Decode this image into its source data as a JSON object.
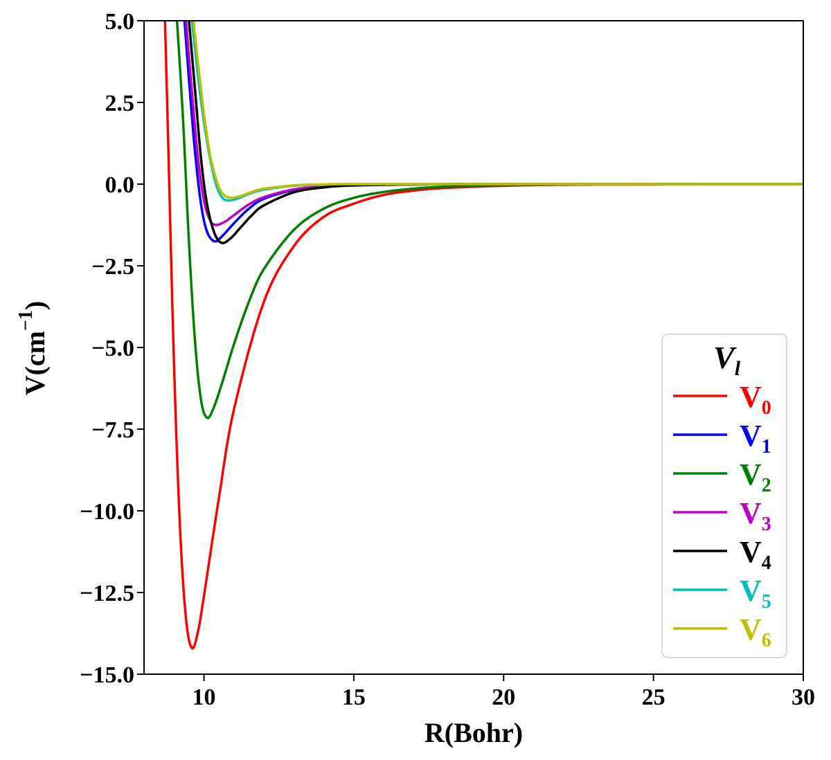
{
  "chart_data": {
    "type": "line",
    "title": "",
    "xlabel": "R(Bohr)",
    "ylabel_main": "V(cm",
    "ylabel_sup": "−1",
    "ylabel_close": ")",
    "xlim": [
      8,
      30
    ],
    "ylim": [
      -15,
      5
    ],
    "xticks": [
      10,
      15,
      20,
      25,
      30
    ],
    "xtick_labels": [
      "10",
      "15",
      "20",
      "25",
      "30"
    ],
    "yticks": [
      5,
      2.5,
      0,
      -2.5,
      -5,
      -7.5,
      -10,
      -12.5,
      -15
    ],
    "ytick_labels": [
      "5.0",
      "2.5",
      "0.0",
      "−2.5",
      "−5.0",
      "−7.5",
      "−10.0",
      "−12.5",
      "−15.0"
    ],
    "legend": {
      "title": "V",
      "title_sub": "l",
      "position": "lower-right"
    },
    "series": [
      {
        "name": "V",
        "sub": "0",
        "color": "#ff0000",
        "min_r": 9.6,
        "min_v": -14.2,
        "decay": 1.6,
        "points": [
          [
            8.7,
            5.0
          ],
          [
            8.8,
            1.5
          ],
          [
            9.0,
            -5.5
          ],
          [
            9.2,
            -10.5
          ],
          [
            9.4,
            -13.3
          ],
          [
            9.6,
            -14.2
          ],
          [
            9.8,
            -13.7
          ],
          [
            10.0,
            -12.6
          ],
          [
            10.5,
            -9.6
          ],
          [
            11,
            -6.9
          ],
          [
            12,
            -3.6
          ],
          [
            13,
            -1.9
          ],
          [
            14,
            -1.0
          ],
          [
            15,
            -0.6
          ],
          [
            16,
            -0.33
          ],
          [
            17,
            -0.2
          ],
          [
            18,
            -0.12
          ],
          [
            20,
            -0.05
          ],
          [
            22,
            -0.02
          ],
          [
            25,
            -0.01
          ],
          [
            30,
            0
          ]
        ]
      },
      {
        "name": "V",
        "sub": "1",
        "color": "#0000ff",
        "min_r": 10.35,
        "min_v": -1.75,
        "points": [
          [
            9.35,
            5.0
          ],
          [
            9.5,
            3.2
          ],
          [
            9.7,
            1.0
          ],
          [
            9.9,
            -0.6
          ],
          [
            10.1,
            -1.45
          ],
          [
            10.35,
            -1.75
          ],
          [
            10.6,
            -1.6
          ],
          [
            11,
            -1.2
          ],
          [
            11.5,
            -0.75
          ],
          [
            12,
            -0.45
          ],
          [
            13,
            -0.18
          ],
          [
            14,
            -0.08
          ],
          [
            15,
            -0.04
          ],
          [
            17,
            -0.01
          ],
          [
            20,
            0
          ],
          [
            30,
            0
          ]
        ]
      },
      {
        "name": "V",
        "sub": "2",
        "color": "#008000",
        "min_r": 10.1,
        "min_v": -7.15,
        "points": [
          [
            9.1,
            5.0
          ],
          [
            9.3,
            2.0
          ],
          [
            9.5,
            -1.8
          ],
          [
            9.7,
            -4.8
          ],
          [
            9.9,
            -6.6
          ],
          [
            10.1,
            -7.15
          ],
          [
            10.3,
            -6.9
          ],
          [
            10.6,
            -6.1
          ],
          [
            11,
            -4.9
          ],
          [
            11.5,
            -3.6
          ],
          [
            12,
            -2.6
          ],
          [
            13,
            -1.4
          ],
          [
            14,
            -0.75
          ],
          [
            15,
            -0.42
          ],
          [
            16,
            -0.24
          ],
          [
            17,
            -0.14
          ],
          [
            18,
            -0.08
          ],
          [
            20,
            -0.03
          ],
          [
            22,
            -0.01
          ],
          [
            25,
            0
          ],
          [
            30,
            0
          ]
        ]
      },
      {
        "name": "V",
        "sub": "3",
        "color": "#bf00bf",
        "min_r": 10.4,
        "min_v": -1.25,
        "points": [
          [
            9.4,
            5.0
          ],
          [
            9.6,
            2.8
          ],
          [
            9.8,
            0.8
          ],
          [
            10.0,
            -0.5
          ],
          [
            10.2,
            -1.1
          ],
          [
            10.4,
            -1.25
          ],
          [
            10.7,
            -1.15
          ],
          [
            11,
            -0.95
          ],
          [
            11.5,
            -0.62
          ],
          [
            12,
            -0.4
          ],
          [
            13,
            -0.16
          ],
          [
            14,
            -0.07
          ],
          [
            15,
            -0.03
          ],
          [
            17,
            -0.01
          ],
          [
            20,
            0
          ],
          [
            30,
            0
          ]
        ]
      },
      {
        "name": "V",
        "sub": "4",
        "color": "#000000",
        "min_r": 10.6,
        "min_v": -1.8,
        "points": [
          [
            9.5,
            5.0
          ],
          [
            9.7,
            2.9
          ],
          [
            9.9,
            0.8
          ],
          [
            10.1,
            -0.6
          ],
          [
            10.35,
            -1.5
          ],
          [
            10.6,
            -1.8
          ],
          [
            10.9,
            -1.65
          ],
          [
            11.2,
            -1.35
          ],
          [
            11.6,
            -0.95
          ],
          [
            12,
            -0.65
          ],
          [
            13,
            -0.25
          ],
          [
            14,
            -0.1
          ],
          [
            15,
            -0.04
          ],
          [
            17,
            -0.01
          ],
          [
            20,
            0
          ],
          [
            30,
            0
          ]
        ]
      },
      {
        "name": "V",
        "sub": "5",
        "color": "#00bfbf",
        "min_r": 10.8,
        "min_v": -0.5,
        "points": [
          [
            9.6,
            5.0
          ],
          [
            9.8,
            3.3
          ],
          [
            10.0,
            1.9
          ],
          [
            10.2,
            0.8
          ],
          [
            10.4,
            0.0
          ],
          [
            10.6,
            -0.4
          ],
          [
            10.8,
            -0.5
          ],
          [
            11.1,
            -0.45
          ],
          [
            11.5,
            -0.3
          ],
          [
            12,
            -0.17
          ],
          [
            13,
            -0.05
          ],
          [
            14,
            -0.02
          ],
          [
            16,
            0
          ],
          [
            30,
            0
          ]
        ]
      },
      {
        "name": "V",
        "sub": "6",
        "color": "#bfbf00",
        "min_r": 10.9,
        "min_v": -0.42,
        "points": [
          [
            9.65,
            5.0
          ],
          [
            9.85,
            3.3
          ],
          [
            10.05,
            1.8
          ],
          [
            10.25,
            0.7
          ],
          [
            10.5,
            -0.1
          ],
          [
            10.7,
            -0.35
          ],
          [
            10.9,
            -0.42
          ],
          [
            11.2,
            -0.37
          ],
          [
            11.6,
            -0.24
          ],
          [
            12,
            -0.14
          ],
          [
            13,
            -0.04
          ],
          [
            14,
            -0.01
          ],
          [
            16,
            0
          ],
          [
            30,
            0
          ]
        ]
      }
    ]
  }
}
